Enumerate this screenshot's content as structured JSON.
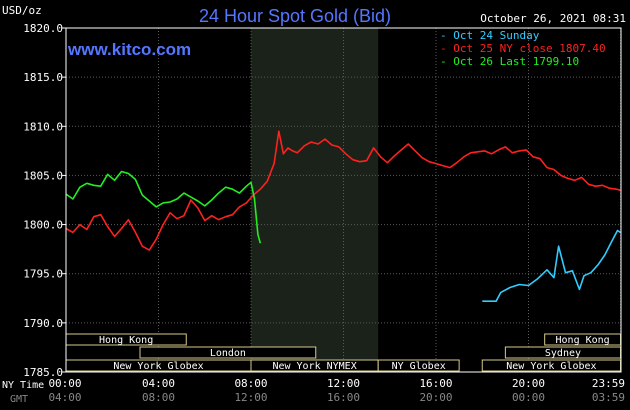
{
  "chart_data": {
    "type": "line",
    "title": "24 Hour Spot Gold (Bid)",
    "ylabel": "USD/oz",
    "ylim": [
      1785,
      1820
    ],
    "yticks": [
      "1820.0",
      "1815.0",
      "1810.0",
      "1805.0",
      "1800.0",
      "1795.0",
      "1790.0",
      "1785.0"
    ],
    "ytick_values": [
      1820,
      1815,
      1810,
      1805,
      1800,
      1795,
      1790,
      1785
    ],
    "xlim_hours": [
      0,
      24
    ],
    "xticks_ny": [
      "00:00",
      "04:00",
      "08:00",
      "12:00",
      "16:00",
      "20:00",
      "23:59"
    ],
    "xticks_gmt": [
      "04:00",
      "08:00",
      "12:00",
      "16:00",
      "20:00",
      "00:00",
      "03:59"
    ],
    "xtick_hours": [
      0,
      4,
      8,
      12,
      16,
      20,
      23.983
    ],
    "x_axis_labels": {
      "ny": "NY Time",
      "gmt": "GMT"
    },
    "timestamp": "October 26, 2021 08:31",
    "watermark": "www.kitco.com",
    "legend_position": "top-right",
    "nymex_shading_hours": [
      8.0,
      13.5
    ],
    "legend": [
      {
        "label": "Oct 24 Sunday",
        "color": "#33ccff"
      },
      {
        "label": "Oct 25 NY close 1807.40",
        "color": "#ff2020"
      },
      {
        "label": "Oct 26 Last 1799.10",
        "color": "#22ee22"
      }
    ],
    "sessions": [
      {
        "label": "Hong Kong",
        "row": 0,
        "start": 0,
        "end": 5.2
      },
      {
        "label": "London",
        "row": 1,
        "start": 3.2,
        "end": 10.8
      },
      {
        "label": "New York Globex",
        "row": 2,
        "start": 0,
        "end": 8.0
      },
      {
        "label": "New York NYMEX",
        "row": 2,
        "start": 8.0,
        "end": 13.5
      },
      {
        "label": "NY Globex",
        "row": 2,
        "start": 13.5,
        "end": 17.0
      },
      {
        "label": "Hong Kong",
        "row": 0,
        "start": 20.7,
        "end": 23.98
      },
      {
        "label": "Sydney",
        "row": 1,
        "start": 19.0,
        "end": 23.98
      },
      {
        "label": "New York Globex",
        "row": 2,
        "start": 18.0,
        "end": 23.98
      }
    ],
    "series": [
      {
        "name": "Oct 25 NY close 1807.40",
        "color": "#ff2020",
        "x": [
          0,
          0.3,
          0.6,
          0.9,
          1.2,
          1.5,
          1.8,
          2.1,
          2.4,
          2.7,
          3.0,
          3.3,
          3.6,
          3.9,
          4.2,
          4.5,
          4.8,
          5.1,
          5.4,
          5.7,
          6.0,
          6.3,
          6.6,
          6.9,
          7.2,
          7.5,
          7.8,
          8.1,
          8.4,
          8.7,
          9.0,
          9.2,
          9.4,
          9.6,
          9.8,
          10.0,
          10.3,
          10.6,
          10.9,
          11.2,
          11.5,
          11.8,
          12.1,
          12.4,
          12.7,
          13.0,
          13.3,
          13.6,
          13.9,
          14.2,
          14.5,
          14.8,
          15.1,
          15.4,
          15.7,
          16.0,
          16.3,
          16.6,
          16.9,
          17.2,
          17.5,
          17.8,
          18.1,
          18.4,
          18.7,
          19.0,
          19.3,
          19.6,
          19.9,
          20.2,
          20.5,
          20.8,
          21.1,
          21.4,
          21.7,
          22.0,
          22.3,
          22.6,
          22.9,
          23.2,
          23.5,
          23.8,
          23.98
        ],
        "y": [
          1799.6,
          1799.2,
          1800.0,
          1799.5,
          1800.8,
          1801.0,
          1799.8,
          1798.8,
          1799.6,
          1800.5,
          1799.2,
          1797.8,
          1797.4,
          1798.5,
          1800.0,
          1801.2,
          1800.6,
          1800.9,
          1802.5,
          1801.7,
          1800.4,
          1800.9,
          1800.5,
          1800.8,
          1801.0,
          1801.8,
          1802.2,
          1803.0,
          1803.6,
          1804.4,
          1806.2,
          1809.5,
          1807.2,
          1807.8,
          1807.5,
          1807.3,
          1808.0,
          1808.4,
          1808.2,
          1808.7,
          1808.1,
          1807.9,
          1807.2,
          1806.6,
          1806.4,
          1806.5,
          1807.8,
          1806.9,
          1806.3,
          1807.0,
          1807.6,
          1808.2,
          1807.5,
          1806.8,
          1806.4,
          1806.2,
          1806.0,
          1805.8,
          1806.3,
          1806.9,
          1807.3,
          1807.4,
          1807.5,
          1807.2,
          1807.6,
          1807.9,
          1807.3,
          1807.5,
          1807.6,
          1806.9,
          1806.7,
          1805.8,
          1805.6,
          1805.0,
          1804.7,
          1804.5,
          1804.8,
          1804.1,
          1803.9,
          1804.0,
          1803.7,
          1803.6,
          1803.5
        ]
      },
      {
        "name": "Oct 26 Last 1799.10",
        "color": "#22ee22",
        "x": [
          0,
          0.3,
          0.6,
          0.9,
          1.2,
          1.5,
          1.8,
          2.1,
          2.4,
          2.7,
          3.0,
          3.3,
          3.6,
          3.9,
          4.2,
          4.5,
          4.8,
          5.1,
          5.4,
          5.7,
          6.0,
          6.3,
          6.6,
          6.9,
          7.2,
          7.5,
          7.8,
          8.0,
          8.15,
          8.3,
          8.4
        ],
        "y": [
          1803.1,
          1802.6,
          1803.8,
          1804.2,
          1804.0,
          1803.9,
          1805.1,
          1804.5,
          1805.4,
          1805.2,
          1804.6,
          1803.0,
          1802.4,
          1801.8,
          1802.2,
          1802.3,
          1802.6,
          1803.2,
          1802.8,
          1802.4,
          1801.9,
          1802.5,
          1803.2,
          1803.8,
          1803.6,
          1803.2,
          1803.9,
          1804.3,
          1802.6,
          1799.0,
          1798.1
        ]
      },
      {
        "name": "Oct 24 Sunday",
        "color": "#33ccff",
        "x": [
          18.0,
          18.6,
          18.8,
          19.2,
          19.6,
          20.0,
          20.4,
          20.8,
          21.1,
          21.3,
          21.6,
          21.9,
          22.2,
          22.4,
          22.7,
          23.0,
          23.3,
          23.6,
          23.85,
          23.98
        ],
        "y": [
          1792.2,
          1792.2,
          1793.1,
          1793.6,
          1793.9,
          1793.8,
          1794.5,
          1795.4,
          1794.6,
          1797.8,
          1795.1,
          1795.3,
          1793.4,
          1794.8,
          1795.1,
          1795.9,
          1796.9,
          1798.3,
          1799.4,
          1799.2
        ]
      }
    ]
  }
}
